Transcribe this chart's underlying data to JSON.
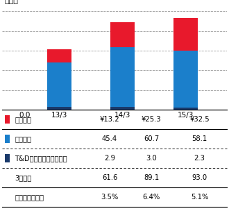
{
  "title_unit": "十億円",
  "categories": [
    "13/3",
    "14/3",
    "15/3"
  ],
  "taiyo": [
    13.2,
    25.3,
    32.5
  ],
  "daido": [
    45.4,
    60.7,
    58.1
  ],
  "tdf": [
    2.9,
    3.0,
    2.3
  ],
  "taiyo_color": "#e8192c",
  "daido_color": "#1b7fcb",
  "tdf_color": "#1a3a6b",
  "ylim": [
    0,
    105
  ],
  "yticks": [
    0.0,
    20.0,
    40.0,
    60.0,
    80.0,
    100.0
  ],
  "bar_width": 0.38,
  "table_rows": [
    [
      "太陽生命",
      "¥13.2",
      "¥25.3",
      "¥32.5"
    ],
    [
      "大同生命",
      "45.4",
      "60.7",
      "58.1"
    ],
    [
      "T&Dフィナンシャル生命",
      "2.9",
      "3.0",
      "2.3"
    ],
    [
      "3社合計",
      "61.6",
      "89.1",
      "93.0"
    ],
    [
      "新契約マージン",
      "3.5%",
      "6.4%",
      "5.1%"
    ]
  ],
  "row_colors_left": [
    "#e8192c",
    "#1b7fcb",
    "#1a3a6b",
    "none",
    "none"
  ],
  "row_line_styles": [
    "solid",
    "dashed",
    "dashed",
    "solid",
    "solid"
  ],
  "bg_color": "#ffffff",
  "grid_color": "#999999",
  "font_size_axis": 7.5,
  "font_size_table": 7.2,
  "font_size_unit": 8.0
}
